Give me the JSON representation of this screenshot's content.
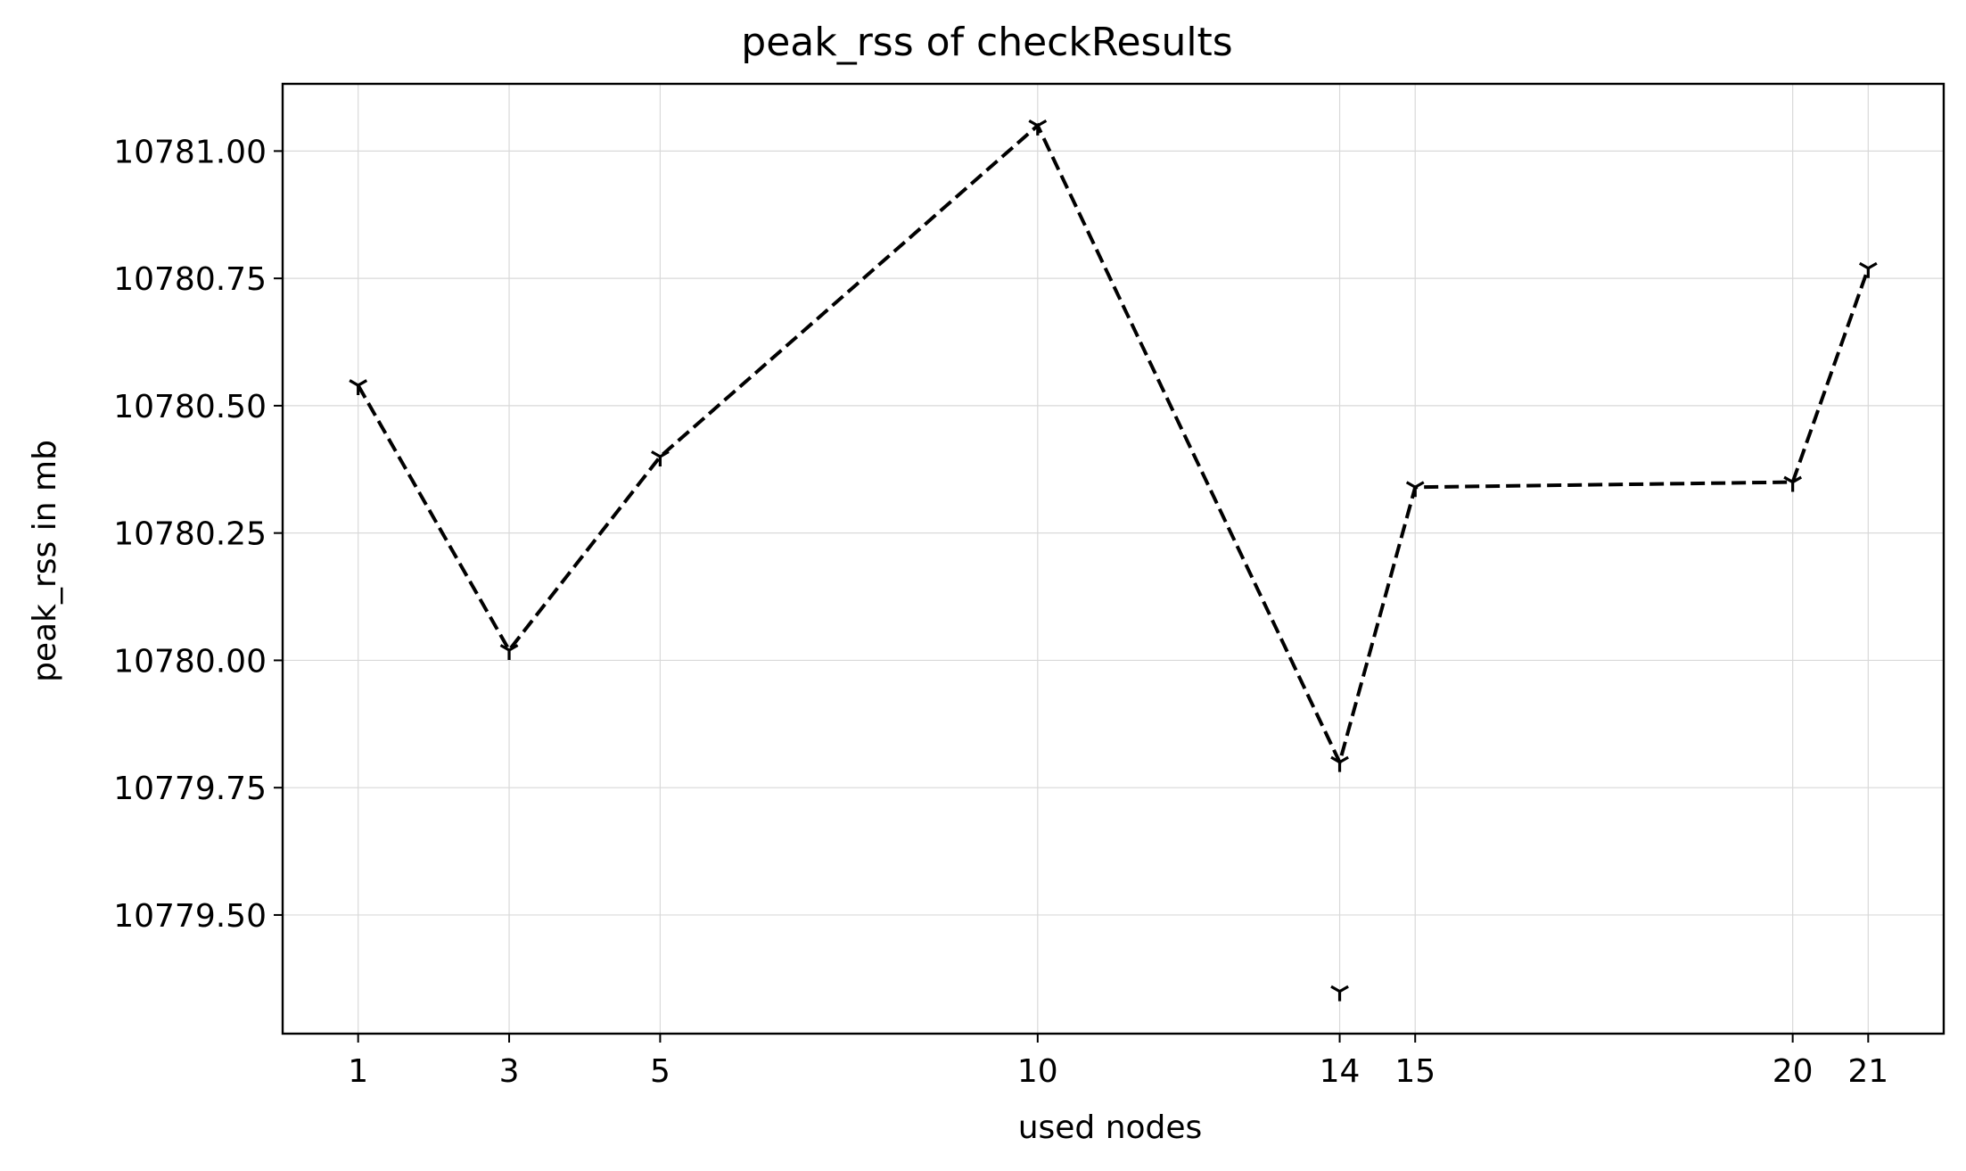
{
  "chart_data": {
    "type": "line",
    "title": "peak_rss of checkResults",
    "xlabel": "used nodes",
    "ylabel": "peak_rss in mb",
    "x_ticks": [
      1,
      3,
      5,
      10,
      14,
      15,
      20,
      21
    ],
    "y_ticks": [
      "10779.50",
      "10779.75",
      "10780.00",
      "10780.25",
      "10780.50",
      "10780.75",
      "10781.00"
    ],
    "xlim": [
      0,
      22
    ],
    "ylim": [
      10779.267,
      10781.132
    ],
    "grid": true,
    "legend": "none",
    "series": [
      {
        "line_style": "dashed",
        "marker": "tri_down",
        "color": "#000000",
        "points": [
          {
            "x": 1,
            "y": 10780.54
          },
          {
            "x": 3,
            "y": 10780.02
          },
          {
            "x": 5,
            "y": 10780.4
          },
          {
            "x": 10,
            "y": 10781.05
          },
          {
            "x": 14,
            "y": 10779.8
          },
          {
            "x": 15,
            "y": 10780.34
          },
          {
            "x": 20,
            "y": 10780.35
          },
          {
            "x": 21,
            "y": 10780.77
          }
        ]
      }
    ],
    "extra_points": [
      {
        "x": 14,
        "y": 10779.35,
        "marker": "tri_down"
      }
    ]
  }
}
